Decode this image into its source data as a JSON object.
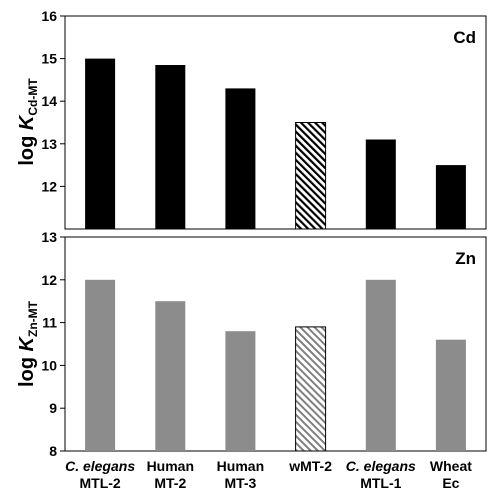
{
  "chart_data": [
    {
      "type": "bar",
      "panel_label": "Cd",
      "ylabel": {
        "prefix": "log ",
        "symbol": "K",
        "subscript": "Cd-MT"
      },
      "ylim": [
        11,
        16
      ],
      "yticks": [
        "12",
        "13",
        "14",
        "15",
        "16"
      ],
      "categories": [
        "C. elegans MTL-2",
        "Human MT-2",
        "Human MT-3",
        "wMT-2",
        "C. elegans MTL-1",
        "Wheat Ec"
      ],
      "values": [
        15.0,
        14.85,
        14.3,
        13.5,
        13.1,
        12.5
      ],
      "bar_color": "#000000",
      "hatched_index": 3,
      "grid": false
    },
    {
      "type": "bar",
      "panel_label": "Zn",
      "ylabel": {
        "prefix": "log ",
        "symbol": "K",
        "subscript": "Zn-MT"
      },
      "ylim": [
        8,
        13
      ],
      "yticks": [
        "8",
        "9",
        "10",
        "11",
        "12",
        "13"
      ],
      "categories": [
        "C. elegans MTL-2",
        "Human MT-2",
        "Human MT-3",
        "wMT-2",
        "C. elegans MTL-1",
        "Wheat Ec"
      ],
      "values": [
        12.0,
        11.5,
        10.8,
        10.9,
        12.0,
        10.6
      ],
      "bar_color": "#8c8c8c",
      "hatched_index": 3,
      "grid": false
    }
  ],
  "x_labels": [
    {
      "line1": "C. elegans",
      "line1_italic": true,
      "line2": "MTL-2"
    },
    {
      "line1": "Human",
      "line1_italic": false,
      "line2": "MT-2"
    },
    {
      "line1": "Human",
      "line1_italic": false,
      "line2": "MT-3"
    },
    {
      "line1": "wMT-2",
      "line1_italic": false,
      "line2": ""
    },
    {
      "line1": "C. elegans",
      "line1_italic": true,
      "line2": "MTL-1"
    },
    {
      "line1": "Wheat",
      "line1_italic": false,
      "line2": "Ec"
    }
  ]
}
